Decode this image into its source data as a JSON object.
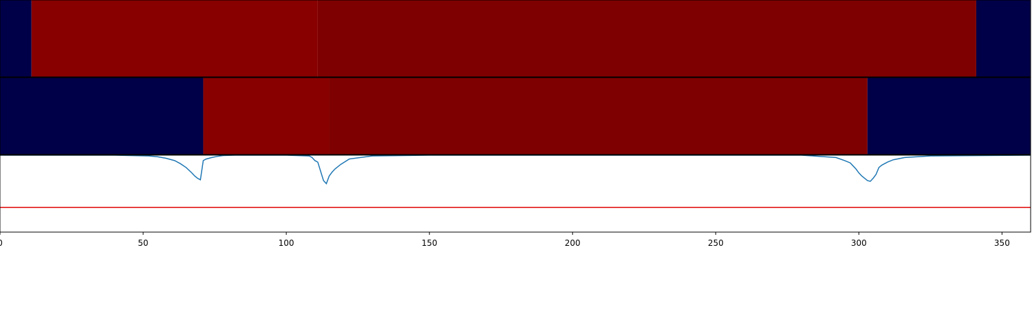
{
  "chart_data": {
    "type": "heatmap",
    "xlim": [
      0,
      360
    ],
    "x_ticks": [
      "0",
      "50",
      "100",
      "150",
      "200",
      "250",
      "300",
      "350"
    ],
    "x_tick_values": [
      0,
      50,
      100,
      150,
      200,
      250,
      300,
      350
    ],
    "colors": {
      "low": "#000048",
      "high_a": "#880000",
      "high_b": "#7f0000",
      "line": "#1f77b4",
      "threshold": "#e00000"
    },
    "bands": [
      {
        "segments": [
          {
            "start": 0,
            "end": 11,
            "level": "low"
          },
          {
            "start": 11,
            "end": 111,
            "level": "high_a"
          },
          {
            "start": 111,
            "end": 341,
            "level": "high_b"
          },
          {
            "start": 341,
            "end": 360,
            "level": "low"
          }
        ]
      },
      {
        "segments": [
          {
            "start": 0,
            "end": 71,
            "level": "low"
          },
          {
            "start": 71,
            "end": 115,
            "level": "high_a"
          },
          {
            "start": 115,
            "end": 303,
            "level": "high_b"
          },
          {
            "start": 303,
            "end": 360,
            "level": "low"
          }
        ]
      }
    ],
    "line_panel": {
      "ylim": [
        0,
        1
      ],
      "threshold": 0.32,
      "series": {
        "x": [
          0,
          20,
          40,
          52,
          55,
          58,
          61,
          63,
          65,
          67,
          68,
          69,
          70,
          71,
          72,
          74,
          76,
          78,
          82,
          90,
          100,
          108,
          109,
          110,
          111,
          112,
          113,
          114,
          115,
          116,
          117,
          119,
          122,
          130,
          150,
          200,
          250,
          280,
          292,
          295,
          297,
          298,
          299,
          300,
          301,
          302,
          303,
          304,
          305,
          306,
          307,
          308,
          310,
          312,
          316,
          325,
          360
        ],
        "y": [
          1.0,
          1.0,
          1.0,
          0.99,
          0.98,
          0.96,
          0.93,
          0.89,
          0.84,
          0.77,
          0.73,
          0.7,
          0.68,
          0.93,
          0.95,
          0.97,
          0.985,
          0.995,
          1.0,
          1.0,
          1.0,
          0.99,
          0.97,
          0.93,
          0.91,
          0.79,
          0.67,
          0.63,
          0.73,
          0.78,
          0.82,
          0.88,
          0.95,
          0.99,
          1.0,
          1.0,
          1.0,
          1.0,
          0.97,
          0.93,
          0.9,
          0.86,
          0.82,
          0.77,
          0.73,
          0.7,
          0.67,
          0.66,
          0.7,
          0.75,
          0.84,
          0.87,
          0.91,
          0.94,
          0.97,
          0.99,
          1.0
        ]
      }
    }
  }
}
